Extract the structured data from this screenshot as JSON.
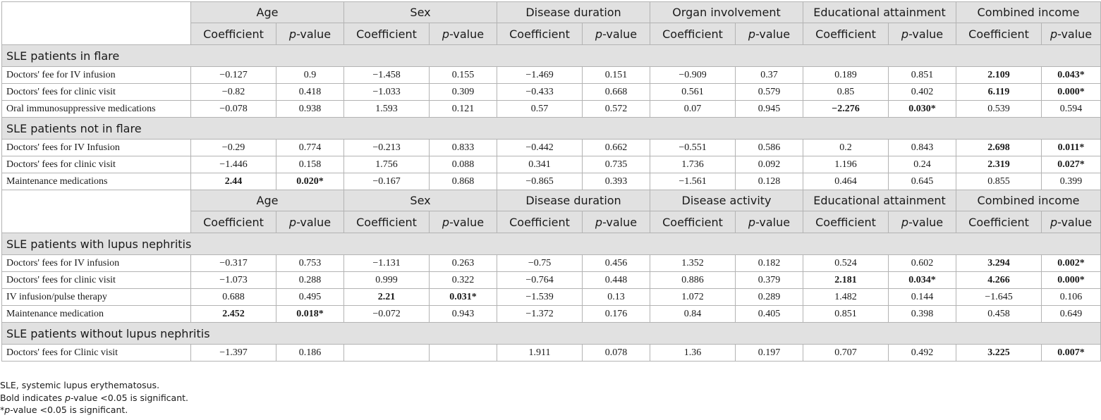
{
  "header_a": {
    "groups": [
      "Age",
      "Sex",
      "Disease duration",
      "Organ involvement",
      "Educational attainment",
      "Combined income"
    ],
    "coef_label": "Coefficient",
    "p_italic": "p",
    "p_rest": "-value"
  },
  "header_b": {
    "groups": [
      "Age",
      "Sex",
      "Disease duration",
      "Disease activity",
      "Educational attainment",
      "Combined income"
    ],
    "coef_label": "Coefficient",
    "p_italic": "p",
    "p_rest": "-value"
  },
  "sections": [
    {
      "title": "SLE patients in flare",
      "rows": [
        {
          "label": "Doctors' fee for IV infusion",
          "cells": [
            {
              "v": "−0.127",
              "bold": false
            },
            {
              "v": "0.9",
              "bold": false
            },
            {
              "v": "−1.458",
              "bold": false
            },
            {
              "v": "0.155",
              "bold": false
            },
            {
              "v": "−1.469",
              "bold": false
            },
            {
              "v": "0.151",
              "bold": false
            },
            {
              "v": "−0.909",
              "bold": false
            },
            {
              "v": "0.37",
              "bold": false
            },
            {
              "v": "0.189",
              "bold": false
            },
            {
              "v": "0.851",
              "bold": false
            },
            {
              "v": "2.109",
              "bold": true
            },
            {
              "v": "0.043",
              "bold": true,
              "star": "*"
            }
          ]
        },
        {
          "label": "Doctors' fees for clinic visit",
          "cells": [
            {
              "v": "−0.82",
              "bold": false
            },
            {
              "v": "0.418",
              "bold": false
            },
            {
              "v": "−1.033",
              "bold": false
            },
            {
              "v": "0.309",
              "bold": false
            },
            {
              "v": "−0.433",
              "bold": false
            },
            {
              "v": "0.668",
              "bold": false
            },
            {
              "v": "0.561",
              "bold": false
            },
            {
              "v": "0.579",
              "bold": false
            },
            {
              "v": "0.85",
              "bold": false
            },
            {
              "v": "0.402",
              "bold": false
            },
            {
              "v": "6.119",
              "bold": true
            },
            {
              "v": "0.000",
              "bold": true,
              "star": "*"
            }
          ]
        },
        {
          "label": "Oral immunosuppressive medications",
          "cells": [
            {
              "v": "−0.078",
              "bold": false
            },
            {
              "v": "0.938",
              "bold": false
            },
            {
              "v": "1.593",
              "bold": false
            },
            {
              "v": "0.121",
              "bold": false
            },
            {
              "v": "0.57",
              "bold": false
            },
            {
              "v": "0.572",
              "bold": false
            },
            {
              "v": "0.07",
              "bold": false
            },
            {
              "v": "0.945",
              "bold": false
            },
            {
              "v": "−2.276",
              "bold": true
            },
            {
              "v": "0.030",
              "bold": true,
              "star": "*"
            },
            {
              "v": "0.539",
              "bold": false
            },
            {
              "v": "0.594",
              "bold": false
            }
          ]
        }
      ]
    },
    {
      "title": "SLE patients not in flare",
      "rows": [
        {
          "label": "Doctors' fees for IV Infusion",
          "cells": [
            {
              "v": "−0.29",
              "bold": false
            },
            {
              "v": "0.774",
              "bold": false
            },
            {
              "v": "−0.213",
              "bold": false
            },
            {
              "v": "0.833",
              "bold": false
            },
            {
              "v": "−0.442",
              "bold": false
            },
            {
              "v": "0.662",
              "bold": false
            },
            {
              "v": "−0.551",
              "bold": false
            },
            {
              "v": "0.586",
              "bold": false
            },
            {
              "v": "0.2",
              "bold": false
            },
            {
              "v": "0.843",
              "bold": false
            },
            {
              "v": "2.698",
              "bold": true
            },
            {
              "v": "0.011",
              "bold": true,
              "star": "*"
            }
          ]
        },
        {
          "label": "Doctors' fees for clinic visit",
          "cells": [
            {
              "v": "−1.446",
              "bold": false
            },
            {
              "v": "0.158",
              "bold": false
            },
            {
              "v": "1.756",
              "bold": false
            },
            {
              "v": "0.088",
              "bold": false
            },
            {
              "v": "0.341",
              "bold": false
            },
            {
              "v": "0.735",
              "bold": false
            },
            {
              "v": "1.736",
              "bold": false
            },
            {
              "v": "0.092",
              "bold": false
            },
            {
              "v": "1.196",
              "bold": false
            },
            {
              "v": "0.24",
              "bold": false
            },
            {
              "v": "2.319",
              "bold": true
            },
            {
              "v": "0.027",
              "bold": true,
              "star": "*"
            }
          ]
        },
        {
          "label": "Maintenance medications",
          "cells": [
            {
              "v": "2.44",
              "bold": true
            },
            {
              "v": "0.020",
              "bold": true,
              "star": "*"
            },
            {
              "v": "−0.167",
              "bold": false
            },
            {
              "v": "0.868",
              "bold": false
            },
            {
              "v": "−0.865",
              "bold": false
            },
            {
              "v": "0.393",
              "bold": false
            },
            {
              "v": "−1.561",
              "bold": false
            },
            {
              "v": "0.128",
              "bold": false
            },
            {
              "v": "0.464",
              "bold": false
            },
            {
              "v": "0.645",
              "bold": false
            },
            {
              "v": "0.855",
              "bold": false
            },
            {
              "v": "0.399",
              "bold": false
            }
          ]
        }
      ]
    },
    {
      "title": "SLE patients with lupus nephritis",
      "rows": [
        {
          "label": "Doctors' fees for IV infusion",
          "cells": [
            {
              "v": "−0.317",
              "bold": false
            },
            {
              "v": "0.753",
              "bold": false
            },
            {
              "v": "−1.131",
              "bold": false
            },
            {
              "v": "0.263",
              "bold": false
            },
            {
              "v": "−0.75",
              "bold": false
            },
            {
              "v": "0.456",
              "bold": false
            },
            {
              "v": "1.352",
              "bold": false
            },
            {
              "v": "0.182",
              "bold": false
            },
            {
              "v": "0.524",
              "bold": false
            },
            {
              "v": "0.602",
              "bold": false
            },
            {
              "v": "3.294",
              "bold": true
            },
            {
              "v": "0.002",
              "bold": true,
              "star": "*"
            }
          ]
        },
        {
          "label": "Doctors' fees for clinic visit",
          "cells": [
            {
              "v": "−1.073",
              "bold": false
            },
            {
              "v": "0.288",
              "bold": false
            },
            {
              "v": "0.999",
              "bold": false
            },
            {
              "v": "0.322",
              "bold": false
            },
            {
              "v": "−0.764",
              "bold": false
            },
            {
              "v": "0.448",
              "bold": false
            },
            {
              "v": "0.886",
              "bold": false
            },
            {
              "v": "0.379",
              "bold": false
            },
            {
              "v": "2.181",
              "bold": true
            },
            {
              "v": "0.034",
              "bold": true,
              "star": "*"
            },
            {
              "v": "4.266",
              "bold": true
            },
            {
              "v": "0.000",
              "bold": true,
              "star": "*"
            }
          ]
        },
        {
          "label": "IV infusion/pulse therapy",
          "cells": [
            {
              "v": "0.688",
              "bold": false
            },
            {
              "v": "0.495",
              "bold": false
            },
            {
              "v": "2.21",
              "bold": true
            },
            {
              "v": "0.031",
              "bold": true,
              "star": "*"
            },
            {
              "v": "−1.539",
              "bold": false
            },
            {
              "v": "0.13",
              "bold": false
            },
            {
              "v": "1.072",
              "bold": false
            },
            {
              "v": "0.289",
              "bold": false
            },
            {
              "v": "1.482",
              "bold": false
            },
            {
              "v": "0.144",
              "bold": false
            },
            {
              "v": "−1.645",
              "bold": false
            },
            {
              "v": "0.106",
              "bold": false
            }
          ]
        },
        {
          "label": "Maintenance medication",
          "cells": [
            {
              "v": "2.452",
              "bold": true
            },
            {
              "v": "0.018",
              "bold": true,
              "star": "*"
            },
            {
              "v": "−0.072",
              "bold": false
            },
            {
              "v": "0.943",
              "bold": false
            },
            {
              "v": "−1.372",
              "bold": false
            },
            {
              "v": "0.176",
              "bold": false
            },
            {
              "v": "0.84",
              "bold": false
            },
            {
              "v": "0.405",
              "bold": false
            },
            {
              "v": "0.851",
              "bold": false
            },
            {
              "v": "0.398",
              "bold": false
            },
            {
              "v": "0.458",
              "bold": false
            },
            {
              "v": "0.649",
              "bold": false
            }
          ]
        }
      ]
    },
    {
      "title": "SLE patients without lupus nephritis",
      "rows": [
        {
          "label": "Doctors' fees for Clinic visit",
          "cells": [
            {
              "v": "−1.397",
              "bold": false
            },
            {
              "v": "0.186",
              "bold": false
            },
            {
              "v": "",
              "bold": false
            },
            {
              "v": "",
              "bold": false
            },
            {
              "v": "1.911",
              "bold": false
            },
            {
              "v": "0.078",
              "bold": false
            },
            {
              "v": "1.36",
              "bold": false
            },
            {
              "v": "0.197",
              "bold": false
            },
            {
              "v": "0.707",
              "bold": false
            },
            {
              "v": "0.492",
              "bold": false
            },
            {
              "v": "3.225",
              "bold": true
            },
            {
              "v": "0.007",
              "bold": true,
              "star": "*"
            }
          ]
        }
      ]
    }
  ],
  "notes": {
    "line1": "SLE, systemic lupus erythematosus.",
    "line2_pre": "Bold indicates ",
    "line2_italic": "p",
    "line2_post": "-value <0.05 is significant.",
    "line3_pre": "*",
    "line3_italic": "p",
    "line3_post": "-value <0.05 is significant."
  }
}
